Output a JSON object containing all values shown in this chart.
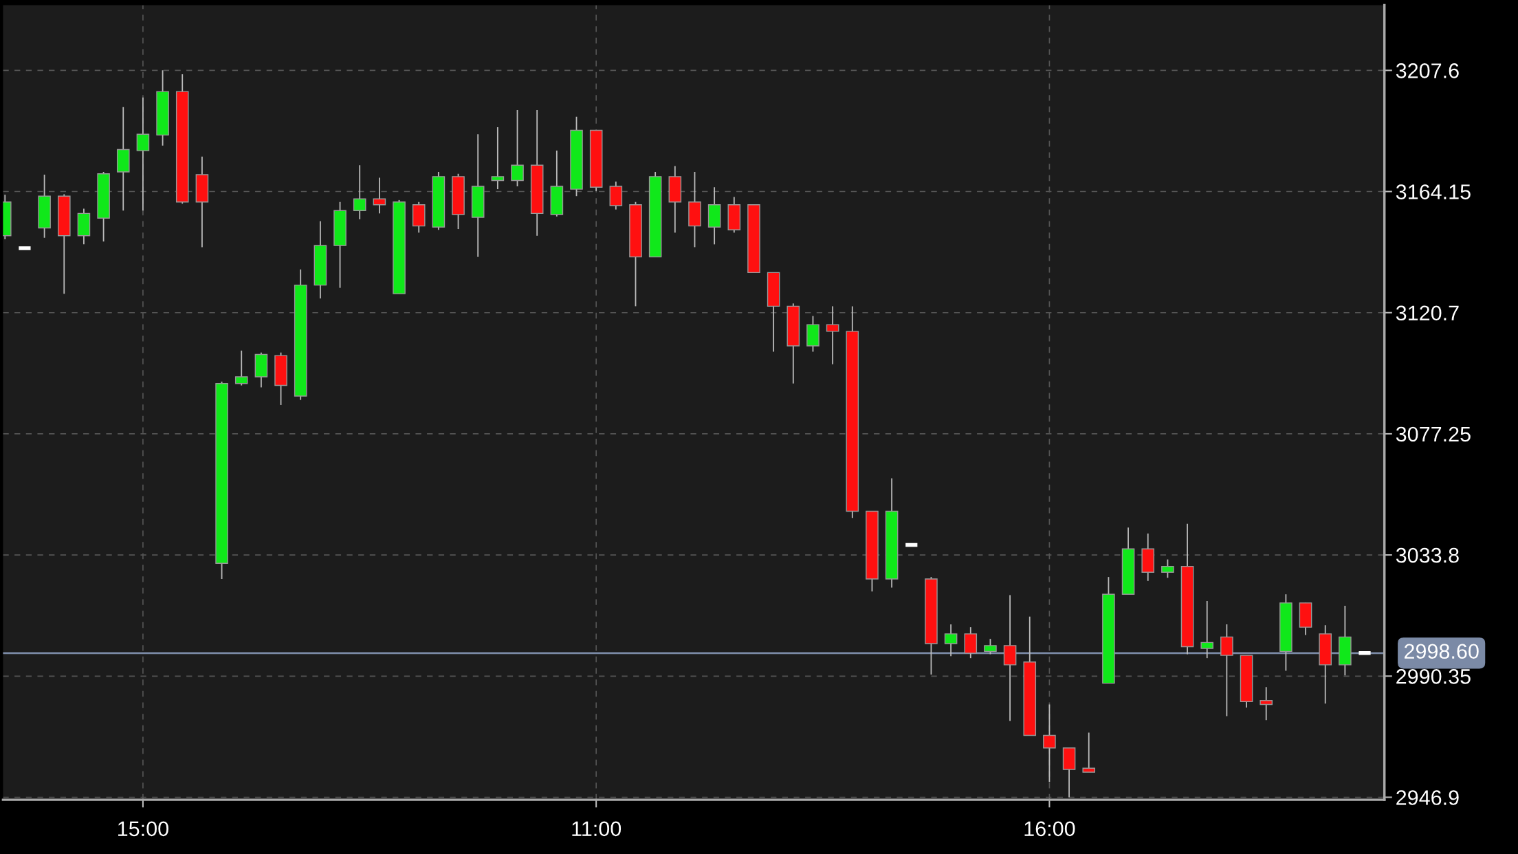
{
  "chart_data": {
    "type": "candlestick",
    "categories": [
      null,
      null,
      null,
      null,
      null,
      null,
      null,
      "15:00",
      null,
      null,
      null,
      null,
      null,
      null,
      null,
      null,
      null,
      null,
      null,
      null,
      null,
      null,
      null,
      null,
      null,
      null,
      null,
      null,
      null,
      null,
      "11:00",
      null,
      null,
      null,
      null,
      null,
      null,
      null,
      null,
      null,
      null,
      null,
      null,
      null,
      null,
      null,
      null,
      null,
      null,
      null,
      null,
      null,
      null,
      "16:00",
      null,
      null,
      null,
      null,
      null,
      null,
      null,
      null,
      null,
      null,
      null,
      null,
      null,
      null,
      null,
      null
    ],
    "ohlc": [
      [
        3148.3,
        3163.0,
        3147.0,
        3160.4
      ],
      [
        3143.8,
        3143.8,
        3143.8,
        3143.8
      ],
      [
        3151.1,
        3170.2,
        3147.6,
        3162.5
      ],
      [
        3162.5,
        3163.2,
        3127.5,
        3148.3
      ],
      [
        3148.3,
        3158.0,
        3145.2,
        3156.3
      ],
      [
        3154.6,
        3171.2,
        3146.2,
        3170.5
      ],
      [
        3171.2,
        3194.4,
        3157.3,
        3179.2
      ],
      [
        3178.8,
        3197.9,
        3157.3,
        3184.7
      ],
      [
        3184.4,
        3207.6,
        3180.6,
        3200.0
      ],
      [
        3200.0,
        3206.2,
        3159.8,
        3160.4
      ],
      [
        3170.2,
        3176.7,
        3144.2,
        3160.4
      ],
      [
        3030.8,
        3096.0,
        3025.2,
        3095.3
      ],
      [
        3095.3,
        3107.1,
        3094.6,
        3097.7
      ],
      [
        3097.7,
        3106.4,
        3093.9,
        3105.7
      ],
      [
        3105.3,
        3106.4,
        3087.6,
        3094.6
      ],
      [
        3090.8,
        3136.2,
        3089.4,
        3130.6
      ],
      [
        3130.6,
        3153.5,
        3125.8,
        3144.8
      ],
      [
        3144.8,
        3160.4,
        3129.6,
        3157.3
      ],
      [
        3157.3,
        3173.6,
        3154.2,
        3161.5
      ],
      [
        3161.5,
        3169.1,
        3156.3,
        3159.4
      ],
      [
        3127.5,
        3161.1,
        3127.5,
        3160.4
      ],
      [
        3159.4,
        3160.4,
        3149.4,
        3151.8
      ],
      [
        3151.4,
        3171.2,
        3150.4,
        3169.5
      ],
      [
        3169.5,
        3170.5,
        3150.7,
        3155.9
      ],
      [
        3154.9,
        3184.7,
        3140.7,
        3166.0
      ],
      [
        3168.1,
        3187.2,
        3165.0,
        3169.5
      ],
      [
        3168.1,
        3193.4,
        3166.0,
        3173.6
      ],
      [
        3173.6,
        3193.4,
        3148.3,
        3156.3
      ],
      [
        3155.9,
        3178.8,
        3155.2,
        3166.0
      ],
      [
        3165.0,
        3191.0,
        3162.5,
        3186.1
      ],
      [
        3186.1,
        3186.1,
        3164.3,
        3165.7
      ],
      [
        3166.0,
        3167.7,
        3157.7,
        3159.1
      ],
      [
        3159.4,
        3160.4,
        3123.0,
        3140.7
      ],
      [
        3140.7,
        3171.2,
        3140.7,
        3169.5
      ],
      [
        3169.5,
        3173.3,
        3149.4,
        3160.4
      ],
      [
        3160.4,
        3171.2,
        3144.2,
        3151.8
      ],
      [
        3151.4,
        3165.7,
        3145.2,
        3159.4
      ],
      [
        3159.4,
        3162.2,
        3149.4,
        3150.4
      ],
      [
        3159.4,
        3159.4,
        3135.1,
        3135.1
      ],
      [
        3135.1,
        3135.1,
        3106.7,
        3123.0
      ],
      [
        3123.0,
        3124.0,
        3095.3,
        3108.8
      ],
      [
        3108.8,
        3119.5,
        3106.7,
        3116.4
      ],
      [
        3116.4,
        3123.0,
        3102.2,
        3114.0
      ],
      [
        3114.0,
        3123.0,
        3047.1,
        3049.5
      ],
      [
        3049.5,
        3049.5,
        3020.7,
        3025.2
      ],
      [
        3025.2,
        3061.3,
        3022.1,
        3049.5
      ],
      [
        3037.4,
        3037.4,
        3037.4,
        3037.4
      ],
      [
        3025.2,
        3025.9,
        2990.9,
        3002.0
      ],
      [
        3002.0,
        3008.9,
        2997.5,
        3005.5
      ],
      [
        3005.5,
        3007.9,
        2996.8,
        2998.6
      ],
      [
        2999.2,
        3003.7,
        2998.2,
        3001.3
      ],
      [
        3001.3,
        3019.4,
        2974.3,
        2994.4
      ],
      [
        2995.4,
        3011.7,
        2969.1,
        2969.1
      ],
      [
        2969.1,
        2980.2,
        2952.4,
        2964.6
      ],
      [
        2964.6,
        2964.6,
        2946.9,
        2956.9
      ],
      [
        2957.3,
        2970.1,
        2955.9,
        2955.9
      ],
      [
        2987.8,
        3025.9,
        2987.8,
        3019.7
      ],
      [
        3019.7,
        3043.6,
        3019.7,
        3036.0
      ],
      [
        3036.0,
        3041.5,
        3024.5,
        3027.6
      ],
      [
        3027.6,
        3032.2,
        3025.6,
        3029.7
      ],
      [
        3029.7,
        3045.0,
        2998.2,
        3000.9
      ],
      [
        3000.3,
        3017.3,
        2996.8,
        3002.4
      ],
      [
        3004.4,
        3008.9,
        2976.0,
        2997.8
      ],
      [
        2997.8,
        2997.8,
        2979.1,
        2981.2
      ],
      [
        2981.6,
        2986.4,
        2974.6,
        2980.2
      ],
      [
        2999.2,
        3019.7,
        2992.3,
        3016.6
      ],
      [
        3016.6,
        3016.6,
        3005.1,
        3007.9
      ],
      [
        3005.5,
        3008.6,
        2980.5,
        2994.4
      ],
      [
        2994.4,
        3015.6,
        2990.6,
        3004.4
      ],
      [
        2998.6,
        2998.6,
        2998.6,
        2998.6
      ]
    ],
    "colors": [
      "#10e81a",
      "#ffffff",
      "#10e81a",
      "#ff1010",
      "#10e81a",
      "#10e81a",
      "#10e81a",
      "#10e81a",
      "#10e81a",
      "#ff1010",
      "#ff1010",
      "#10e81a",
      "#10e81a",
      "#10e81a",
      "#ff1010",
      "#10e81a",
      "#10e81a",
      "#10e81a",
      "#10e81a",
      "#ff1010",
      "#10e81a",
      "#ff1010",
      "#10e81a",
      "#ff1010",
      "#10e81a",
      "#10e81a",
      "#10e81a",
      "#ff1010",
      "#10e81a",
      "#10e81a",
      "#ff1010",
      "#ff1010",
      "#ff1010",
      "#10e81a",
      "#ff1010",
      "#ff1010",
      "#10e81a",
      "#ff1010",
      "#ff1010",
      "#ff1010",
      "#ff1010",
      "#10e81a",
      "#ff1010",
      "#ff1010",
      "#ff1010",
      "#10e81a",
      "#ffffff",
      "#ff1010",
      "#10e81a",
      "#ff1010",
      "#10e81a",
      "#ff1010",
      "#ff1010",
      "#ff1010",
      "#ff1010",
      "#ff1010",
      "#10e81a",
      "#10e81a",
      "#ff1010",
      "#10e81a",
      "#ff1010",
      "#10e81a",
      "#ff1010",
      "#ff1010",
      "#ff1010",
      "#10e81a",
      "#ff1010",
      "#ff1010",
      "#10e81a",
      "#ffffff"
    ],
    "ylim": [
      2946,
      3231
    ],
    "yticks": [
      2946.9,
      2990.35,
      3033.8,
      3077.25,
      3120.7,
      3164.15,
      3207.6
    ],
    "ref_lines": [
      {
        "axis": "y",
        "value": 2998.6,
        "label": "2998.60",
        "color": "#7b8aa6"
      }
    ],
    "grid": true
  }
}
